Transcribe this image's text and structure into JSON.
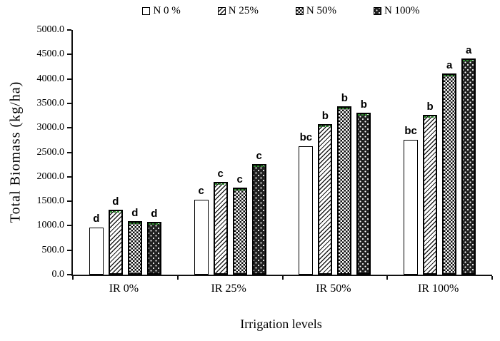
{
  "chart_data": {
    "type": "bar",
    "title": "",
    "xlabel": "Irrigation levels",
    "ylabel": "Total Biomass (kg/ha)",
    "ylim": [
      0,
      5000
    ],
    "ytick_step": 500,
    "ytick_format": "one_decimal",
    "grid": false,
    "legend_position": "top-center",
    "categories": [
      "IR 0%",
      "IR 25%",
      "IR 50%",
      "IR 100%"
    ],
    "series": [
      {
        "name": "N 0 %",
        "pattern": "plain",
        "values": [
          960,
          1530,
          2630,
          2750
        ],
        "letters": [
          "d",
          "c",
          "bc",
          "bc"
        ],
        "green_cap": false
      },
      {
        "name": "N 25%",
        "pattern": "diag",
        "values": [
          1330,
          1890,
          3070,
          3260
        ],
        "letters": [
          "d",
          "c",
          "b",
          "b"
        ],
        "green_cap": true
      },
      {
        "name": "N 50%",
        "pattern": "check",
        "values": [
          1100,
          1780,
          3440,
          4110
        ],
        "letters": [
          "d",
          "c",
          "b",
          "a"
        ],
        "green_cap": true
      },
      {
        "name": "N 100%",
        "pattern": "dots",
        "values": [
          1080,
          2260,
          3310,
          4420
        ],
        "letters": [
          "d",
          "c",
          "b",
          "a"
        ],
        "green_cap": true
      }
    ],
    "colors": {
      "background": "#ffffff",
      "bar_outline": "#000000",
      "text": "#000000",
      "green_cap": "#2d8a2d"
    }
  }
}
